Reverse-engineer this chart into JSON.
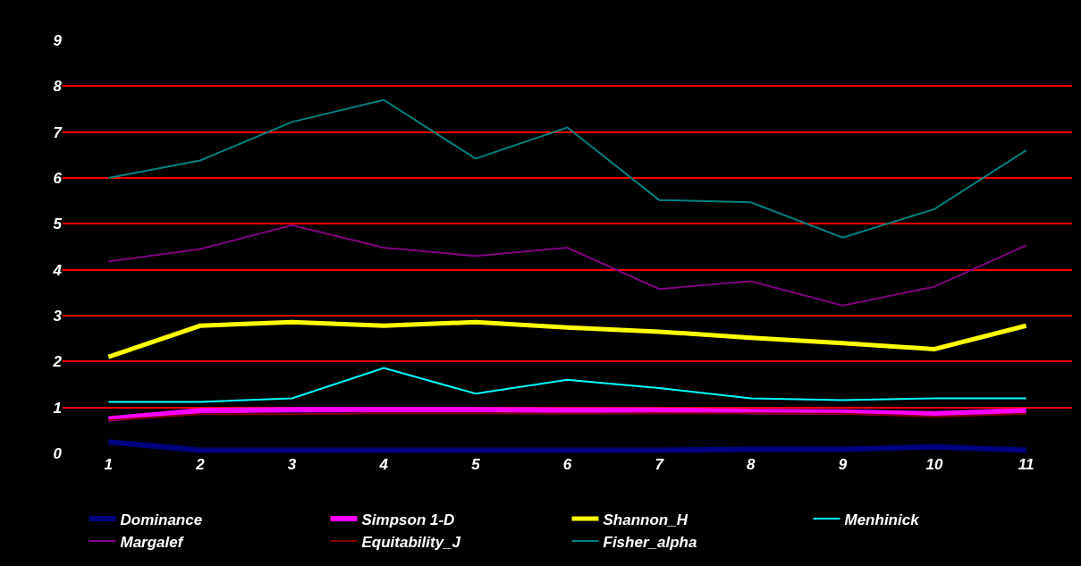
{
  "chart_data": {
    "type": "line",
    "categories": [
      "1",
      "2",
      "3",
      "4",
      "5",
      "6",
      "7",
      "8",
      "9",
      "10",
      "11"
    ],
    "series": [
      {
        "name": "Dominance",
        "color": "#000080",
        "values": [
          0.25,
          0.07,
          0.07,
          0.07,
          0.07,
          0.07,
          0.07,
          0.09,
          0.09,
          0.14,
          0.07
        ]
      },
      {
        "name": "Simpson 1-D",
        "color": "#ff00ff",
        "values": [
          0.75,
          0.93,
          0.95,
          0.95,
          0.95,
          0.94,
          0.94,
          0.91,
          0.9,
          0.86,
          0.93
        ]
      },
      {
        "name": "Shannon_H",
        "color": "#ffff00",
        "values": [
          2.1,
          2.78,
          2.86,
          2.78,
          2.86,
          2.74,
          2.65,
          2.52,
          2.4,
          2.27,
          2.78
        ]
      },
      {
        "name": "Menhinick",
        "color": "#00ffff",
        "values": [
          1.12,
          1.12,
          1.2,
          1.86,
          1.3,
          1.6,
          1.42,
          1.2,
          1.16,
          1.2,
          1.2
        ]
      },
      {
        "name": "Margalef",
        "color": "#800080",
        "values": [
          4.18,
          4.45,
          4.97,
          4.48,
          4.3,
          4.48,
          3.58,
          3.75,
          3.22,
          3.63,
          4.53
        ]
      },
      {
        "name": "Equitability_J",
        "color": "#800000",
        "values": [
          0.72,
          0.85,
          0.85,
          0.87,
          0.87,
          0.86,
          0.87,
          0.87,
          0.86,
          0.8,
          0.86
        ]
      },
      {
        "name": "Fisher_alpha",
        "color": "#008080",
        "values": [
          6.0,
          6.38,
          7.22,
          7.7,
          6.42,
          7.1,
          5.52,
          5.47,
          4.7,
          5.32,
          6.6
        ]
      }
    ],
    "ylim": [
      0,
      9
    ],
    "yticks": [
      0,
      1,
      2,
      3,
      4,
      5,
      6,
      7,
      8,
      9
    ],
    "grid": "y",
    "legend": "bottom",
    "marker": "none",
    "line_style": "solid"
  }
}
